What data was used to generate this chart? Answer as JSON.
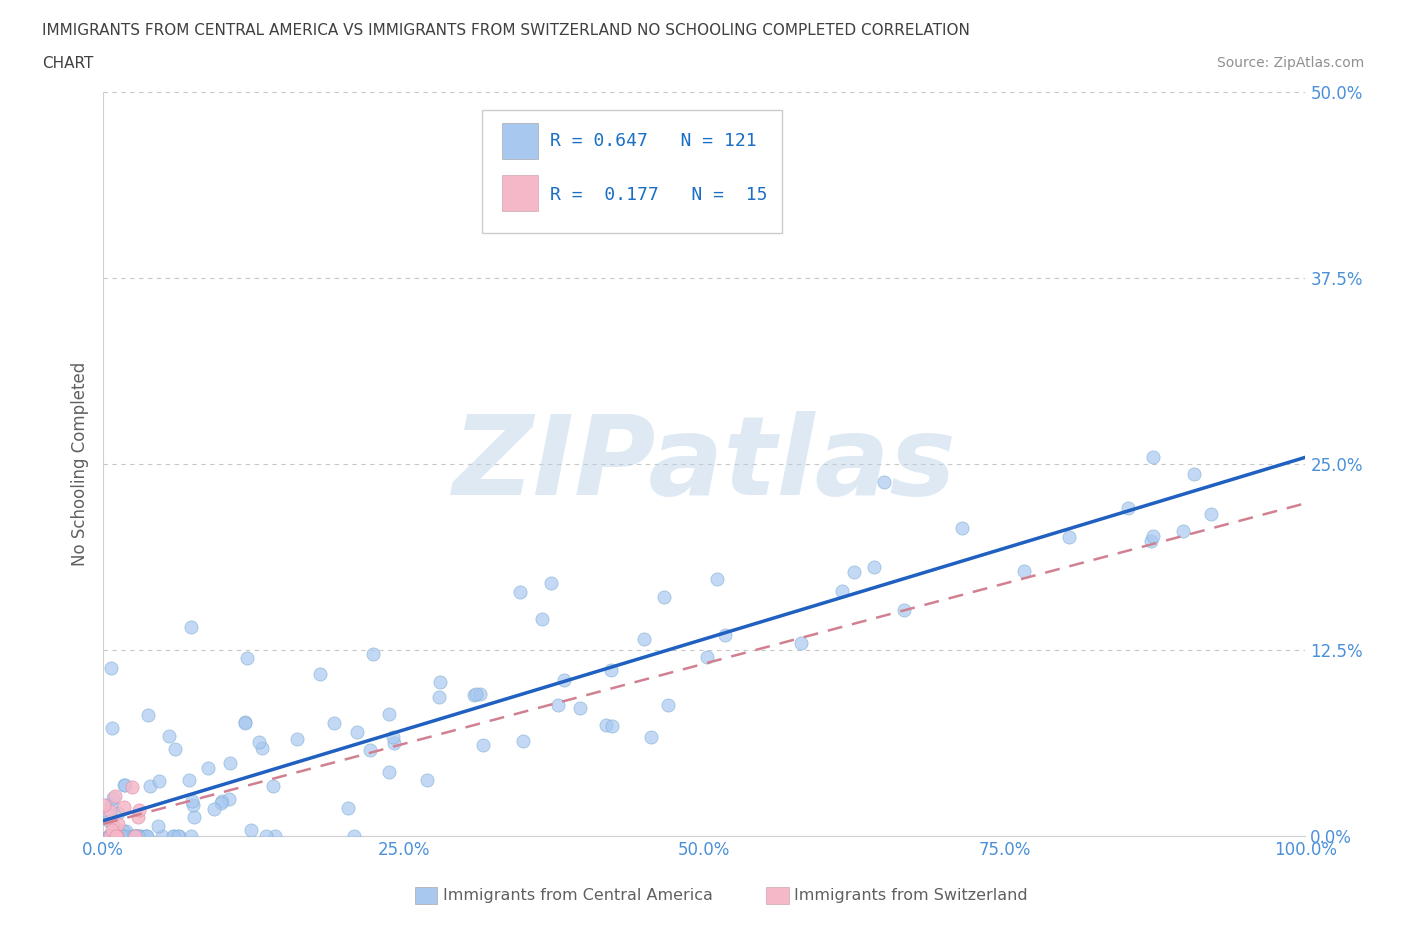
{
  "title_line1": "IMMIGRANTS FROM CENTRAL AMERICA VS IMMIGRANTS FROM SWITZERLAND NO SCHOOLING COMPLETED CORRELATION",
  "title_line2": "CHART",
  "source": "Source: ZipAtlas.com",
  "ylabel": "No Schooling Completed",
  "x_label_bottom": "Immigrants from Central America",
  "x_label_bottom2": "Immigrants from Switzerland",
  "watermark": "ZIPatlas",
  "xlim": [
    0,
    100
  ],
  "ylim": [
    0,
    50
  ],
  "yticks": [
    0,
    12.5,
    25,
    37.5,
    50
  ],
  "ytick_labels": [
    "0.0%",
    "12.5%",
    "25.0%",
    "37.5%",
    "50.0%"
  ],
  "xticks": [
    0,
    25,
    50,
    75,
    100
  ],
  "xtick_labels": [
    "0.0%",
    "25.0%",
    "50.0%",
    "75.0%",
    "100.0%"
  ],
  "R_blue": 0.647,
  "N_blue": 121,
  "R_pink": 0.177,
  "N_pink": 15,
  "blue_color": "#a8c8f0",
  "blue_edge_color": "#7aaad0",
  "pink_color": "#f5b8c8",
  "pink_edge_color": "#e090a8",
  "blue_line_color": "#2060c0",
  "pink_line_color": "#d08090",
  "title_color": "#404040",
  "source_color": "#909090",
  "axis_tick_color": "#4a90d9",
  "legend_text_color": "#1a6fc4",
  "background_color": "#ffffff",
  "grid_color": "#c8c8c8",
  "seed": 42,
  "blue_line_slope": 0.25,
  "blue_line_intercept": 0.0,
  "pink_line_slope": 0.2,
  "pink_line_intercept": 0.0
}
